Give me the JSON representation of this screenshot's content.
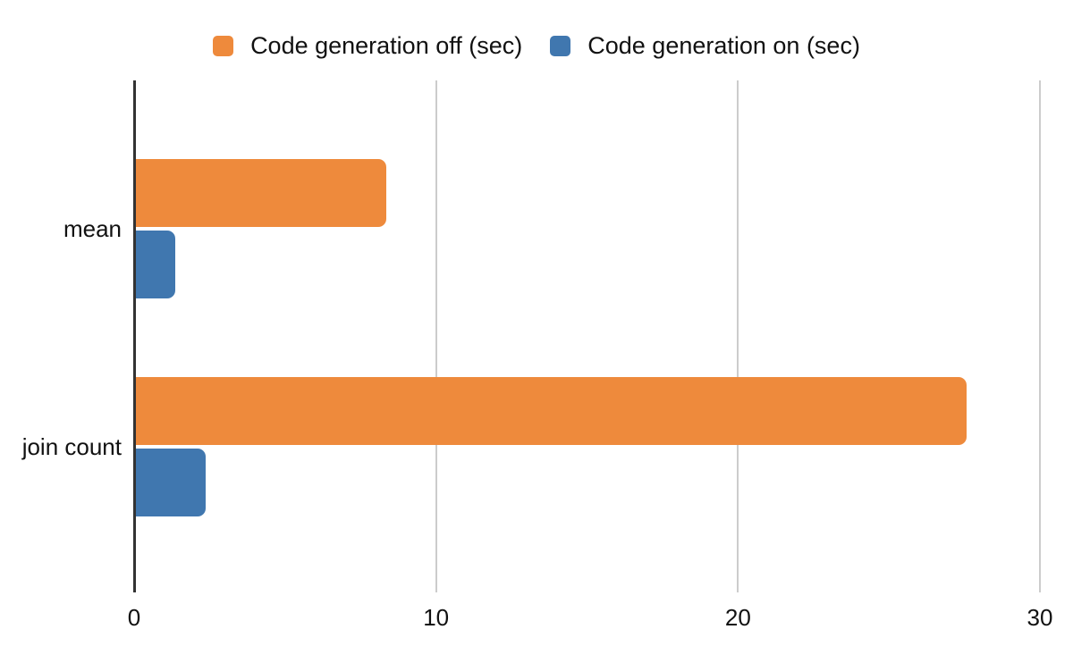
{
  "chart": {
    "background": "#ffffff",
    "axis_color": "#333333",
    "gridline_color": "#cccccc",
    "text_color": "#111111"
  },
  "legend": {
    "position": "top-center",
    "items": [
      {
        "label": "Code generation off (sec)",
        "color": "#EE8A3C"
      },
      {
        "label": "Code generation on (sec)",
        "color": "#4077AF"
      }
    ]
  },
  "chart_data": {
    "type": "bar",
    "orientation": "horizontal",
    "title": "",
    "xlabel": "",
    "ylabel": "",
    "categories": [
      "mean",
      "join count"
    ],
    "series": [
      {
        "name": "Code generation off (sec)",
        "color": "#EE8A3C",
        "values": [
          8.3,
          27.5
        ]
      },
      {
        "name": "Code generation on (sec)",
        "color": "#4077AF",
        "values": [
          1.3,
          2.3
        ]
      }
    ],
    "xlim": [
      0,
      30
    ],
    "x_ticks": [
      0,
      10,
      20,
      30
    ],
    "grid": "vertical",
    "legend_position": "top"
  }
}
